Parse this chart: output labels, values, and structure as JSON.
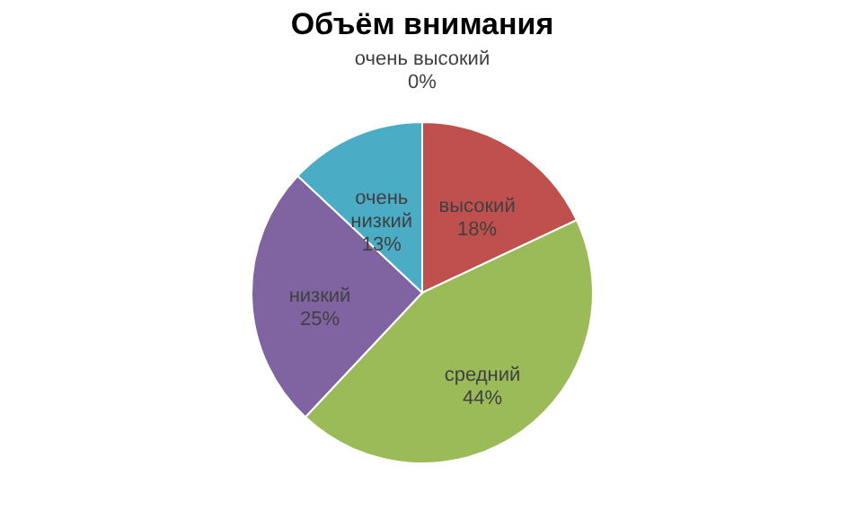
{
  "chart_data": {
    "type": "pie",
    "title": "Объём внимания",
    "categories": [
      "очень высокий",
      "высокий",
      "средний",
      "низкий",
      "очень низкий"
    ],
    "values": [
      0,
      18,
      44,
      25,
      13
    ],
    "value_labels": [
      "0%",
      "18%",
      "44%",
      "25%",
      "13%"
    ],
    "colors": [
      "#4f81bd",
      "#c0504d",
      "#9bbb59",
      "#8064a2",
      "#4bacc6"
    ],
    "legend": false
  }
}
